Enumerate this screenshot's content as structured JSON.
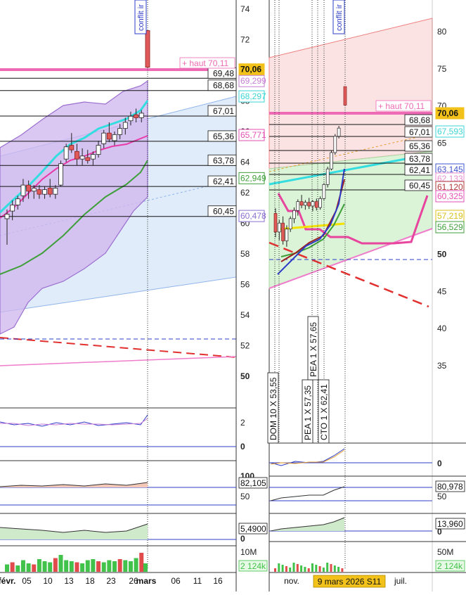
{
  "chart_data": [
    {
      "type": "candlestick",
      "panel": "left-daily",
      "y_axis_ticks": [
        "74",
        "72",
        "70",
        "68",
        "66",
        "64",
        "62",
        "60",
        "58",
        "56",
        "54",
        "52",
        "50"
      ],
      "x_axis_ticks": [
        "févr.",
        "05",
        "10",
        "13",
        "18",
        "23",
        "26",
        "mars",
        "06",
        "11",
        "16"
      ],
      "annotation": "conflit ir",
      "level_labels": [
        "+ haut 70,11",
        "69,48",
        "68,68",
        "67,01",
        "65,36",
        "63,78",
        "62,41",
        "60,45"
      ],
      "levels": [
        69.48,
        68.68,
        67.01,
        65.36,
        63.78,
        62.41,
        60.45
      ],
      "price_badges": [
        {
          "text": "70,06",
          "color": "#f2c21a"
        },
        {
          "text": "69,299",
          "color": "#c77dd6"
        },
        {
          "text": "68,297",
          "color": "#3cd5d5"
        },
        {
          "text": "65,771",
          "color": "#e64fb4"
        },
        {
          "text": "62,949",
          "color": "#3f9f3a"
        },
        {
          "text": "60,478",
          "color": "#8a6fd0"
        }
      ],
      "candles": [
        {
          "o": 60.3,
          "h": 60.9,
          "l": 58.6,
          "c": 60.6
        },
        {
          "o": 60.8,
          "h": 61.5,
          "l": 60.2,
          "c": 61.2
        },
        {
          "o": 61.2,
          "h": 61.8,
          "l": 60.9,
          "c": 61.6
        },
        {
          "o": 61.8,
          "h": 62.9,
          "l": 61.4,
          "c": 62.5
        },
        {
          "o": 62.5,
          "h": 62.8,
          "l": 61.6,
          "c": 62.1
        },
        {
          "o": 62.1,
          "h": 62.5,
          "l": 61.6,
          "c": 62.3
        },
        {
          "o": 62.2,
          "h": 62.5,
          "l": 61.6,
          "c": 61.9
        },
        {
          "o": 61.9,
          "h": 62.4,
          "l": 61.6,
          "c": 62.2
        },
        {
          "o": 62.3,
          "h": 62.9,
          "l": 61.7,
          "c": 61.9
        },
        {
          "o": 61.9,
          "h": 62.5,
          "l": 61.6,
          "c": 62.3
        },
        {
          "o": 62.5,
          "h": 64.1,
          "l": 62.4,
          "c": 63.9
        },
        {
          "o": 64.2,
          "h": 65.2,
          "l": 64.0,
          "c": 65.0
        },
        {
          "o": 65.1,
          "h": 65.9,
          "l": 64.6,
          "c": 64.8
        },
        {
          "o": 64.7,
          "h": 65.2,
          "l": 63.8,
          "c": 64.2
        },
        {
          "o": 64.2,
          "h": 64.9,
          "l": 63.8,
          "c": 64.4
        },
        {
          "o": 64.3,
          "h": 64.8,
          "l": 63.9,
          "c": 64.1
        },
        {
          "o": 64.2,
          "h": 64.7,
          "l": 63.8,
          "c": 64.5
        },
        {
          "o": 64.5,
          "h": 65.4,
          "l": 64.3,
          "c": 65.1
        },
        {
          "o": 65.2,
          "h": 66.1,
          "l": 64.9,
          "c": 65.9
        },
        {
          "o": 65.9,
          "h": 66.6,
          "l": 65.3,
          "c": 65.5
        },
        {
          "o": 65.4,
          "h": 66.0,
          "l": 65.1,
          "c": 65.8
        },
        {
          "o": 65.8,
          "h": 66.5,
          "l": 65.5,
          "c": 66.2
        },
        {
          "o": 66.2,
          "h": 66.9,
          "l": 65.8,
          "c": 66.6
        },
        {
          "o": 66.7,
          "h": 67.3,
          "l": 66.4,
          "c": 67.0
        },
        {
          "o": 67.1,
          "h": 67.5,
          "l": 66.6,
          "c": 66.9
        },
        {
          "o": 66.9,
          "h": 67.4,
          "l": 66.6,
          "c": 67.2
        },
        {
          "o": 72.6,
          "h": 72.6,
          "l": 70.2,
          "c": 70.2
        }
      ],
      "sub_panels": [
        {
          "ticks": [
            "2",
            "0"
          ]
        },
        {
          "ticks": [
            "100",
            "50"
          ],
          "badge": "82,105"
        },
        {
          "ticks": [
            "5,4900",
            "0"
          ]
        },
        {
          "ticks": [
            "10M"
          ],
          "badge": "2 124k"
        }
      ]
    },
    {
      "type": "candlestick",
      "panel": "right-weekly",
      "y_axis_ticks": [
        "80",
        "75",
        "70",
        "65",
        "60",
        "55",
        "50",
        "45",
        "40",
        "35"
      ],
      "x_axis_ticks": [
        "nov.",
        "juil."
      ],
      "x_date_label": "9 mars 2026 S11",
      "annotation": "conflit ir",
      "level_labels": [
        "+ haut 70,11",
        "68,68",
        "67,01",
        "65,36",
        "63,78",
        "62,41",
        "60,45"
      ],
      "levels": [
        68.68,
        67.01,
        65.36,
        63.78,
        62.41,
        60.45
      ],
      "price_badges": [
        {
          "text": "70,06",
          "color": "#f2c21a"
        },
        {
          "text": "67,593",
          "color": "#3cd5d5"
        },
        {
          "text": "63,145",
          "color": "#3f55d0"
        },
        {
          "text": "62,133",
          "color": "#e88fd0"
        },
        {
          "text": "61,120",
          "color": "#b23a3a"
        },
        {
          "text": "60,325",
          "color": "#e64fb4"
        },
        {
          "text": "57,219",
          "color": "#d8c21a"
        },
        {
          "text": "56,529",
          "color": "#3f9f3a"
        }
      ],
      "trade_labels": [
        "DOM 10 X 53,55",
        "PEA 1 X 57,35",
        "PEA 1 X 57,65",
        "CTO 1 X 62,41"
      ],
      "sub_panels": [
        {
          "ticks": [
            "0"
          ]
        },
        {
          "ticks": [
            "50"
          ],
          "badge": "80,978"
        },
        {
          "ticks": [
            "0"
          ],
          "badge": "13,960"
        },
        {
          "ticks": [
            "50M"
          ],
          "badge": "2 124k"
        }
      ]
    }
  ]
}
